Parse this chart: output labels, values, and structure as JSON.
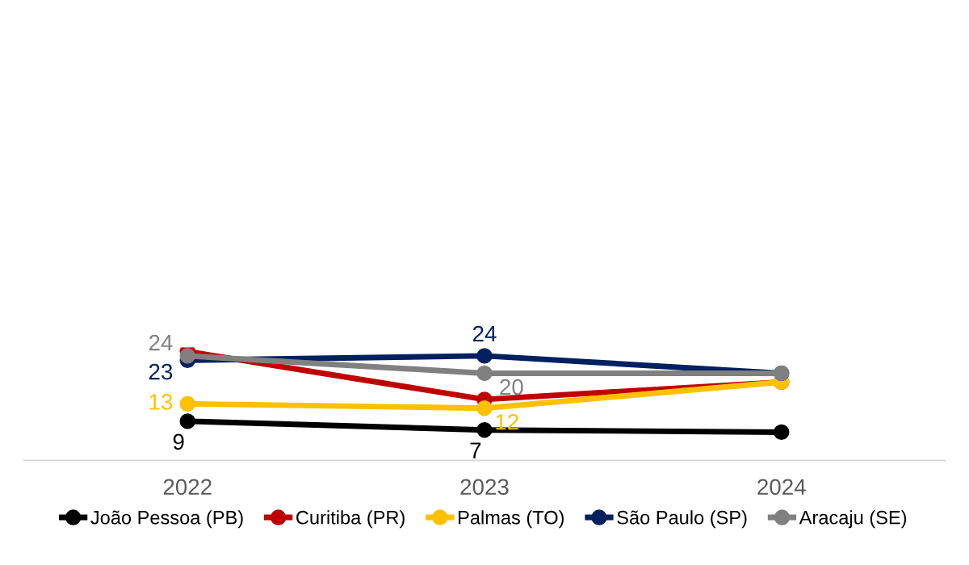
{
  "chart_data": {
    "type": "line",
    "categories": [
      "2022",
      "2023",
      "2024"
    ],
    "tick_labels": "x",
    "marker": "circle",
    "line_style": "solid",
    "grid": false,
    "legend": "bottom",
    "series": [
      {
        "name": "João Pessoa (PB)",
        "color": "#000000",
        "values": [
          9,
          7,
          6.5
        ],
        "value_labels": [
          "9",
          "7",
          null
        ]
      },
      {
        "name": "Curitiba (PR)",
        "color": "#c00000",
        "values": [
          25,
          14,
          18
        ],
        "value_labels": [
          null,
          null,
          null
        ]
      },
      {
        "name": "Palmas (TO)",
        "color": "#ffc000",
        "values": [
          13,
          12,
          18
        ],
        "value_labels": [
          "13",
          "12",
          null
        ]
      },
      {
        "name": "São Paulo (SP)",
        "color": "#002060",
        "values": [
          23,
          24,
          20
        ],
        "value_labels": [
          "23",
          "24",
          null
        ]
      },
      {
        "name": "Aracaju (SE)",
        "color": "#808080",
        "values": [
          24,
          20,
          20
        ],
        "value_labels": [
          "24",
          "20",
          null
        ]
      }
    ]
  }
}
